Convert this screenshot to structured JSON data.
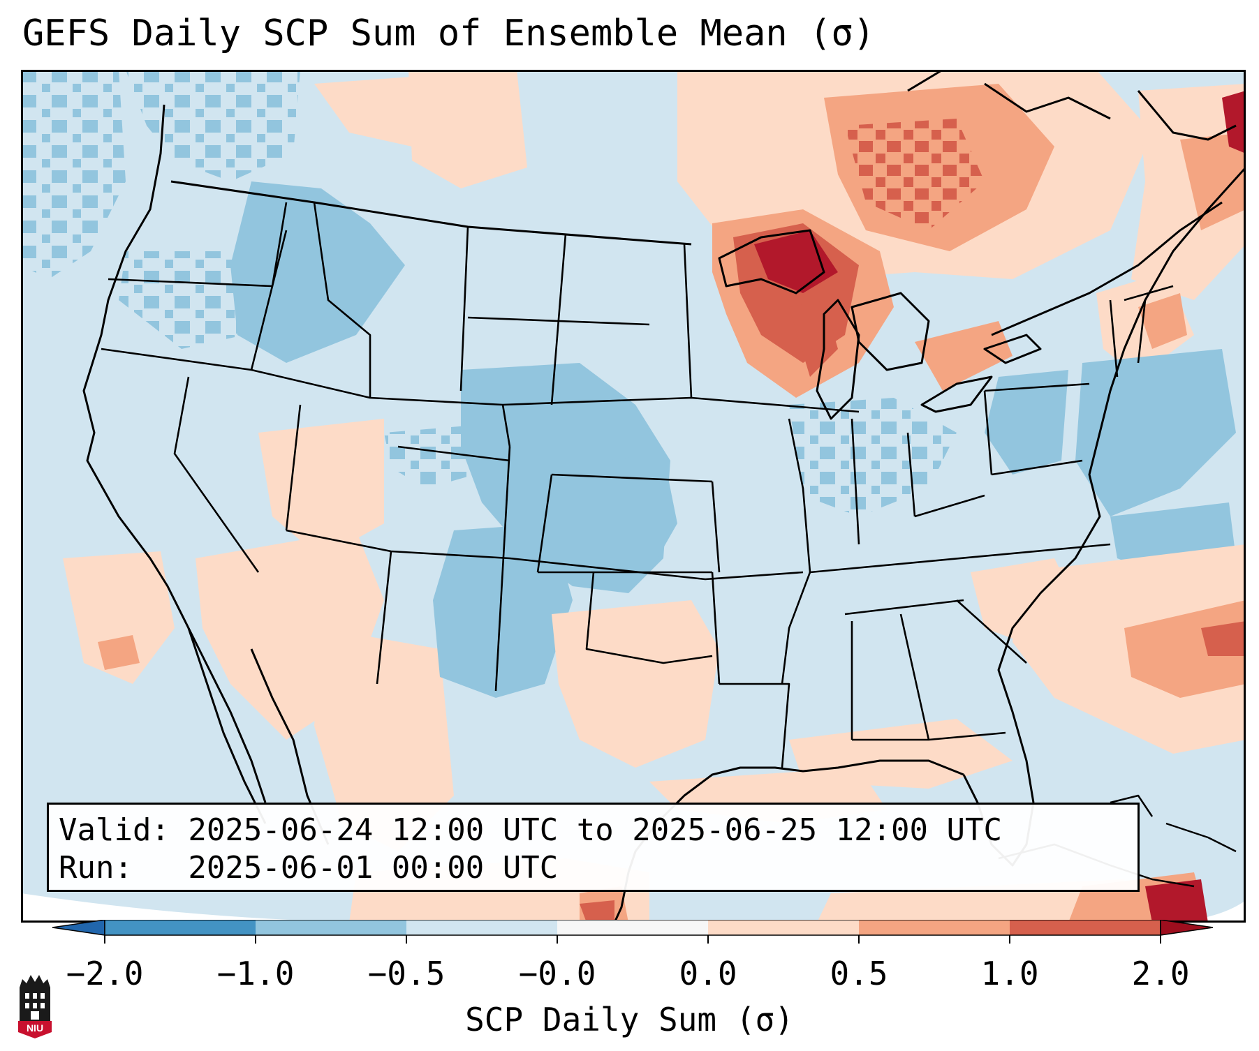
{
  "title": "GEFS Daily SCP Sum of Ensemble Mean (σ)",
  "info": {
    "valid_line": "Valid: 2025-06-24 12:00 UTC to 2025-06-25 12:00 UTC",
    "run_line": "Run:   2025-06-01 00:00 UTC"
  },
  "colorbar": {
    "label": "SCP Daily Sum (σ)",
    "ticks": [
      "−2.0",
      "−1.0",
      "−0.5",
      "−0.0",
      "0.0",
      "0.5",
      "1.0",
      "2.0"
    ],
    "colors": [
      "#4393c3",
      "#92c5de",
      "#d1e5f0",
      "#f7f7f7",
      "#fddbc7",
      "#f4a582",
      "#d6604d",
      "#b2182b"
    ],
    "under_color": "#2166ac",
    "over_color": "#9e0e1e"
  },
  "map": {
    "background_color": "#d1e5f0",
    "anomalies": [
      {
        "region": "Great Lakes / Upper Midwest",
        "level": 2.0
      },
      {
        "region": "Southern Ontario / Quebec",
        "level": 1.0
      },
      {
        "region": "New England",
        "level": 0.5
      },
      {
        "region": "Southern Saskatchewan / Manitoba",
        "level": 0.5
      },
      {
        "region": "Central Plains",
        "level": -1.0
      },
      {
        "region": "Idaho / Montana",
        "level": -1.0
      },
      {
        "region": "Mid-Atlantic Offshore",
        "level": -1.0
      },
      {
        "region": "Texas",
        "level": 0.5
      },
      {
        "region": "Caribbean",
        "level": 2.0
      }
    ]
  },
  "logo": {
    "text": "NIU"
  }
}
